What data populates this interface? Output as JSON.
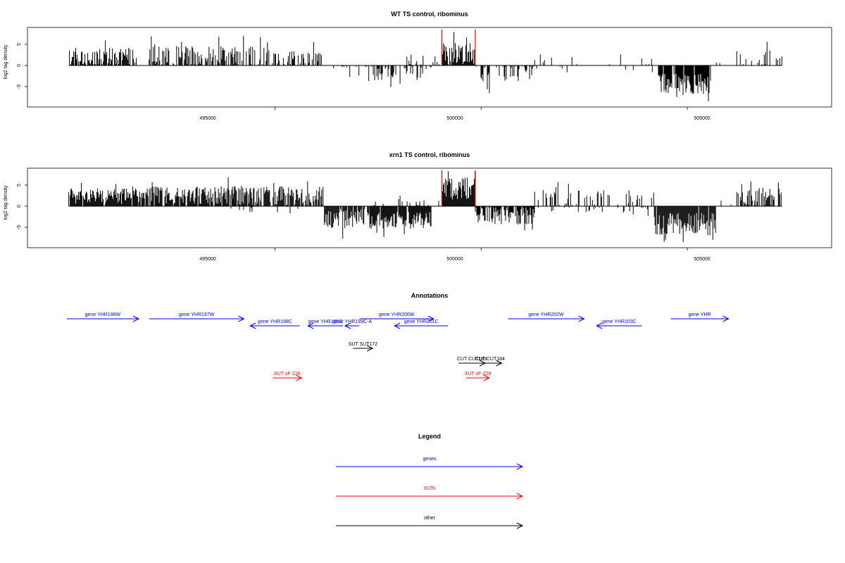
{
  "chart_data": [
    {
      "type": "bar",
      "title": "WT TS control, ribominus",
      "xlabel": "",
      "ylabel": "log2 tag density",
      "xlim": [
        489000,
        508500
      ],
      "ylim": [
        -10,
        9
      ],
      "x_ticks": [
        "495000",
        "500000",
        "505000"
      ],
      "y_ticks": [
        "5",
        "0",
        "-5"
      ],
      "highlight_lines_x": [
        499050,
        499860
      ],
      "highlight_color": "#ff0000",
      "bar_color": "#000000",
      "regions": [
        {
          "from": 490000,
          "to": 491700,
          "sign": 1,
          "dens": 0.75,
          "mean": 2.0,
          "amp": 2.8
        },
        {
          "from": 491950,
          "to": 494000,
          "sign": 1,
          "dens": 0.6,
          "mean": 2.2,
          "amp": 3.0
        },
        {
          "from": 494000,
          "to": 495000,
          "sign": 1,
          "dens": 0.5,
          "mean": 2.0,
          "amp": 3.2
        },
        {
          "from": 495000,
          "to": 496200,
          "sign": 1,
          "dens": 0.45,
          "mean": 1.8,
          "amp": 2.2
        },
        {
          "from": 496200,
          "to": 497400,
          "sign": -1,
          "dens": 0.22,
          "mean": 1.2,
          "amp": 2.0
        },
        {
          "from": 497300,
          "to": 498800,
          "sign": -1,
          "dens": 0.35,
          "mean": 1.6,
          "amp": 2.4
        },
        {
          "from": 498200,
          "to": 499050,
          "sign": 1,
          "dens": 0.22,
          "mean": 1.2,
          "amp": 1.8
        },
        {
          "from": 499050,
          "to": 499860,
          "sign": 1,
          "dens": 0.9,
          "mean": 2.6,
          "amp": 3.4
        },
        {
          "from": 499860,
          "to": 501300,
          "sign": -1,
          "dens": 0.5,
          "mean": 1.6,
          "amp": 3.2
        },
        {
          "from": 501300,
          "to": 504200,
          "sign": 1,
          "dens": 0.07,
          "mean": 1.2,
          "amp": 2.2
        },
        {
          "from": 501300,
          "to": 504200,
          "sign": -1,
          "dens": 0.05,
          "mean": 0.8,
          "amp": 1.0
        },
        {
          "from": 504300,
          "to": 505600,
          "sign": -1,
          "dens": 0.85,
          "mean": 4.2,
          "amp": 3.2
        },
        {
          "from": 505600,
          "to": 506200,
          "sign": 1,
          "dens": 0.06,
          "mean": 1.0,
          "amp": 1.0
        },
        {
          "from": 506200,
          "to": 507300,
          "sign": 1,
          "dens": 0.3,
          "mean": 1.5,
          "amp": 2.6
        }
      ]
    },
    {
      "type": "bar",
      "title": "xrn1 TS control, ribominus",
      "xlabel": "",
      "ylabel": "log2 tag density",
      "xlim": [
        489000,
        508500
      ],
      "ylim": [
        -10,
        9
      ],
      "x_ticks": [
        "495000",
        "500000",
        "505000"
      ],
      "y_ticks": [
        "5",
        "0",
        "-5"
      ],
      "highlight_lines_x": [
        499050,
        499860
      ],
      "highlight_color": "#ff0000",
      "bar_color": "#000000",
      "regions": [
        {
          "from": 490000,
          "to": 491700,
          "sign": 1,
          "dens": 0.95,
          "mean": 2.4,
          "amp": 2.4
        },
        {
          "from": 491700,
          "to": 494000,
          "sign": 1,
          "dens": 0.9,
          "mean": 2.6,
          "amp": 2.6
        },
        {
          "from": 494000,
          "to": 496200,
          "sign": 1,
          "dens": 0.85,
          "mean": 2.4,
          "amp": 3.0
        },
        {
          "from": 493900,
          "to": 496000,
          "sign": -1,
          "dens": 0.05,
          "mean": 1.0,
          "amp": 1.2
        },
        {
          "from": 496200,
          "to": 497300,
          "sign": -1,
          "dens": 0.85,
          "mean": 3.0,
          "amp": 3.0
        },
        {
          "from": 497300,
          "to": 498800,
          "sign": -1,
          "dens": 0.95,
          "mean": 3.4,
          "amp": 2.6
        },
        {
          "from": 497300,
          "to": 499050,
          "sign": 1,
          "dens": 0.1,
          "mean": 1.0,
          "amp": 1.0
        },
        {
          "from": 499050,
          "to": 499860,
          "sign": 1,
          "dens": 1.0,
          "mean": 4.2,
          "amp": 3.4
        },
        {
          "from": 499860,
          "to": 501300,
          "sign": -1,
          "dens": 0.85,
          "mean": 2.0,
          "amp": 3.2
        },
        {
          "from": 501300,
          "to": 504200,
          "sign": 1,
          "dens": 0.3,
          "mean": 1.8,
          "amp": 2.4
        },
        {
          "from": 501300,
          "to": 504200,
          "sign": -1,
          "dens": 0.12,
          "mean": 0.8,
          "amp": 1.0
        },
        {
          "from": 504200,
          "to": 505700,
          "sign": -1,
          "dens": 0.95,
          "mean": 4.2,
          "amp": 3.4
        },
        {
          "from": 505700,
          "to": 506200,
          "sign": 1,
          "dens": 0.08,
          "mean": 1.0,
          "amp": 1.0
        },
        {
          "from": 506200,
          "to": 507300,
          "sign": 1,
          "dens": 0.7,
          "mean": 2.0,
          "amp": 3.0
        }
      ]
    }
  ],
  "annotations": {
    "title": "Annotations",
    "genes_color": "#0000ff",
    "xuts_color": "#ff0000",
    "other_color": "#000000",
    "features": [
      {
        "label": "gene YHR196W",
        "start": 489950,
        "end": 491700,
        "row": 0,
        "strand": "+",
        "kind": "gene"
      },
      {
        "label": "gene YHR197W",
        "start": 491950,
        "end": 494250,
        "row": 0,
        "strand": "+",
        "kind": "gene"
      },
      {
        "label": "gene YHR198C",
        "start": 494400,
        "end": 495600,
        "row": 1,
        "strand": "-",
        "kind": "gene"
      },
      {
        "label": "gene YHR199C",
        "start": 495800,
        "end": 496650,
        "row": 1,
        "strand": "-",
        "kind": "gene"
      },
      {
        "label": "gene YHR199C-A",
        "start": 496700,
        "end": 497050,
        "row": 1,
        "strand": "-",
        "kind": "gene"
      },
      {
        "label": "gene YHR200W",
        "start": 497050,
        "end": 498850,
        "row": 0,
        "strand": "+",
        "kind": "gene"
      },
      {
        "label": "gene YHR201C",
        "start": 497900,
        "end": 499200,
        "row": 1,
        "strand": "-",
        "kind": "gene"
      },
      {
        "label": "gene YHR202W",
        "start": 500650,
        "end": 502500,
        "row": 0,
        "strand": "+",
        "kind": "gene"
      },
      {
        "label": "gene YHR203C",
        "start": 502800,
        "end": 503900,
        "row": 1,
        "strand": "-",
        "kind": "gene"
      },
      {
        "label": "gene YHR",
        "start": 504600,
        "end": 506000,
        "row": 0,
        "strand": "+",
        "kind": "gene"
      },
      {
        "label": "SUT SUT172",
        "start": 496900,
        "end": 497370,
        "row": 2,
        "strand": "+",
        "kind": "other"
      },
      {
        "label": "CUT CUT183",
        "start": 499450,
        "end": 500100,
        "row": 3,
        "strand": "+",
        "kind": "other"
      },
      {
        "label": "CUT CUT184",
        "start": 499930,
        "end": 500500,
        "row": 3,
        "strand": "+",
        "kind": "other"
      },
      {
        "label": "XUT sF-226",
        "start": 494950,
        "end": 495650,
        "row": 4,
        "strand": "+",
        "kind": "xut"
      },
      {
        "label": "XUT sF-229",
        "start": 499640,
        "end": 500200,
        "row": 4,
        "strand": "+",
        "kind": "xut"
      }
    ]
  },
  "legend": {
    "title": "Legend",
    "items": [
      {
        "label": "genes",
        "color": "#0000ff"
      },
      {
        "label": "XUTs",
        "color": "#ff0000"
      },
      {
        "label": "other",
        "color": "#000000"
      }
    ]
  }
}
